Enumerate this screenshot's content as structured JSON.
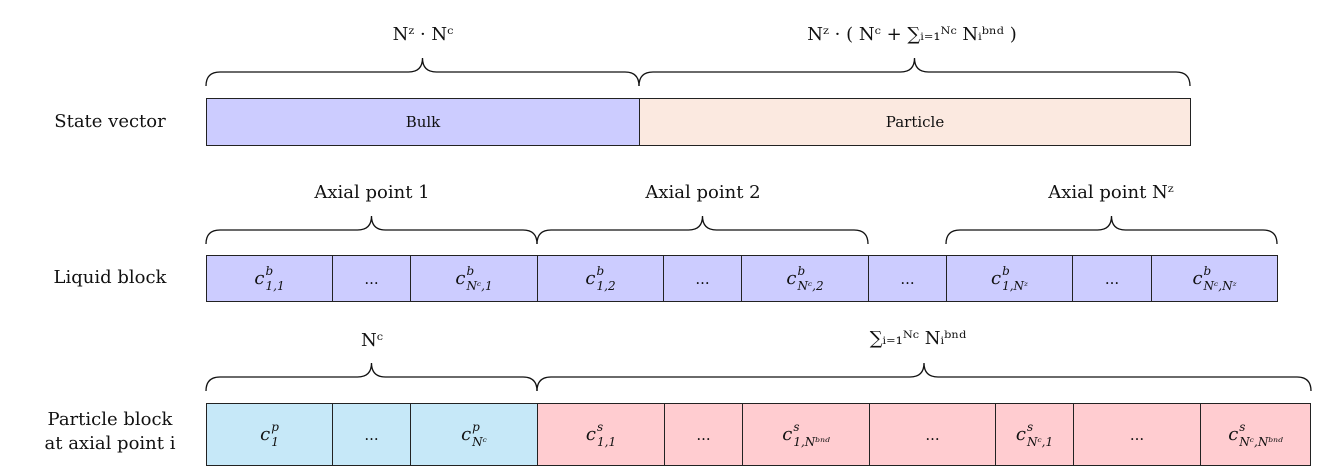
{
  "rows": {
    "state": {
      "label": "State vector"
    },
    "liquid": {
      "label": "Liquid block"
    },
    "particle": {
      "label_line1": "Particle block",
      "label_line2": "at axial point i"
    }
  },
  "state_cells": [
    {
      "text": "Bulk",
      "color": "#ccccff"
    },
    {
      "text": "Particle",
      "color": "#fbe9e0"
    }
  ],
  "liquid_cells": [
    {
      "base": "c",
      "sup": "b",
      "sub": "1,1"
    },
    {
      "text": "..."
    },
    {
      "base": "c",
      "sup": "b",
      "sub": "Nᶜ,1"
    },
    {
      "base": "c",
      "sup": "b",
      "sub": "1,2"
    },
    {
      "text": "..."
    },
    {
      "base": "c",
      "sup": "b",
      "sub": "Nᶜ,2"
    },
    {
      "text": "..."
    },
    {
      "base": "c",
      "sup": "b",
      "sub": "1,Nᶻ"
    },
    {
      "text": "..."
    },
    {
      "base": "c",
      "sup": "b",
      "sub": "Nᶜ,Nᶻ"
    }
  ],
  "particle_cells": [
    {
      "base": "c",
      "sup": "p",
      "sub": "1",
      "color": "#c6e8f8"
    },
    {
      "text": "...",
      "color": "#c6e8f8"
    },
    {
      "base": "c",
      "sup": "p",
      "sub": "Nᶜ",
      "color": "#c6e8f8"
    },
    {
      "base": "c",
      "sup": "s",
      "sub": "1,1",
      "color": "#ffccd0"
    },
    {
      "text": "...",
      "color": "#ffccd0"
    },
    {
      "base": "c",
      "sup": "s",
      "sub": "1,Nᵇⁿᵈ",
      "color": "#ffccd0"
    },
    {
      "text": "...",
      "color": "#ffccd0"
    },
    {
      "base": "c",
      "sup": "s",
      "sub": "Nᶜ,1",
      "color": "#ffccd0"
    },
    {
      "text": "...",
      "color": "#ffccd0"
    },
    {
      "base": "c",
      "sup": "s",
      "sub": "Nᶜ,Nᵇⁿᵈ",
      "color": "#ffccd0"
    }
  ],
  "braces": {
    "bulk": "Nᶻ · Nᶜ",
    "particle": "Nᶻ · ( Nᶜ + ∑ᵢ₌₁ᴺᶜ Nᵢᵇⁿᵈ )",
    "axial1": "Axial point 1",
    "axial2": "Axial point 2",
    "axialN": "Axial point Nᶻ",
    "pcount": "Nᶜ",
    "scount": "∑ᵢ₌₁ᴺᶜ Nᵢᵇⁿᵈ"
  }
}
